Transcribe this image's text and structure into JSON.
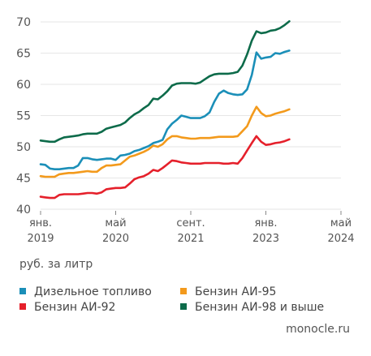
{
  "chart_data": {
    "type": "line",
    "ylim": [
      40,
      70
    ],
    "yticks": [
      40,
      45,
      50,
      55,
      60,
      65,
      70
    ],
    "xlim": [
      0,
      64
    ],
    "x_ticks": [
      {
        "x": 0,
        "month": "янв.",
        "year": "2019"
      },
      {
        "x": 16,
        "month": "май",
        "year": "2020"
      },
      {
        "x": 32,
        "month": "сент.",
        "year": "2021"
      },
      {
        "x": 48,
        "month": "янв.",
        "year": "2023"
      },
      {
        "x": 64,
        "month": "май",
        "year": "2024"
      }
    ],
    "unit": "руб. за литр",
    "grid": true,
    "series": [
      {
        "name": "Дизельное топливо",
        "color": "#1b8fb8",
        "points": [
          [
            0,
            47.2
          ],
          [
            1,
            47.1
          ],
          [
            2,
            46.5
          ],
          [
            3,
            46.4
          ],
          [
            4,
            46.4
          ],
          [
            5,
            46.5
          ],
          [
            6,
            46.6
          ],
          [
            7,
            46.6
          ],
          [
            8,
            47.0
          ],
          [
            9,
            48.2
          ],
          [
            10,
            48.2
          ],
          [
            11,
            48.0
          ],
          [
            12,
            47.9
          ],
          [
            13,
            48.0
          ],
          [
            14,
            48.1
          ],
          [
            15,
            48.1
          ],
          [
            16,
            47.9
          ],
          [
            17,
            48.6
          ],
          [
            18,
            48.7
          ],
          [
            19,
            48.9
          ],
          [
            20,
            49.3
          ],
          [
            21,
            49.5
          ],
          [
            22,
            49.8
          ],
          [
            23,
            50.1
          ],
          [
            24,
            50.6
          ],
          [
            25,
            50.8
          ],
          [
            26,
            51.1
          ],
          [
            27,
            52.8
          ],
          [
            28,
            53.7
          ],
          [
            29,
            54.3
          ],
          [
            30,
            55.0
          ],
          [
            31,
            54.8
          ],
          [
            32,
            54.6
          ],
          [
            33,
            54.6
          ],
          [
            34,
            54.6
          ],
          [
            35,
            54.9
          ],
          [
            36,
            55.5
          ],
          [
            37,
            57.2
          ],
          [
            38,
            58.5
          ],
          [
            39,
            59.0
          ],
          [
            40,
            58.6
          ],
          [
            41,
            58.4
          ],
          [
            42,
            58.3
          ],
          [
            43,
            58.4
          ],
          [
            44,
            59.2
          ],
          [
            45,
            61.5
          ],
          [
            46,
            65.1
          ],
          [
            47,
            64.1
          ],
          [
            48,
            64.3
          ],
          [
            49,
            64.4
          ],
          [
            50,
            65.0
          ],
          [
            51,
            64.9
          ],
          [
            52,
            65.2
          ],
          [
            53,
            65.4
          ]
        ]
      },
      {
        "name": "Бензин АИ-95",
        "color": "#f39a1c",
        "points": [
          [
            0,
            45.3
          ],
          [
            1,
            45.2
          ],
          [
            2,
            45.2
          ],
          [
            3,
            45.2
          ],
          [
            4,
            45.6
          ],
          [
            5,
            45.7
          ],
          [
            6,
            45.8
          ],
          [
            7,
            45.8
          ],
          [
            8,
            45.9
          ],
          [
            9,
            46.0
          ],
          [
            10,
            46.1
          ],
          [
            11,
            46.0
          ],
          [
            12,
            46.0
          ],
          [
            13,
            46.6
          ],
          [
            14,
            47.0
          ],
          [
            15,
            47.0
          ],
          [
            16,
            47.1
          ],
          [
            17,
            47.2
          ],
          [
            18,
            47.8
          ],
          [
            19,
            48.4
          ],
          [
            20,
            48.6
          ],
          [
            21,
            48.9
          ],
          [
            22,
            49.2
          ],
          [
            23,
            49.6
          ],
          [
            24,
            50.2
          ],
          [
            25,
            50.0
          ],
          [
            26,
            50.4
          ],
          [
            27,
            51.2
          ],
          [
            28,
            51.7
          ],
          [
            29,
            51.7
          ],
          [
            30,
            51.5
          ],
          [
            31,
            51.4
          ],
          [
            32,
            51.3
          ],
          [
            33,
            51.3
          ],
          [
            34,
            51.4
          ],
          [
            35,
            51.4
          ],
          [
            36,
            51.4
          ],
          [
            37,
            51.5
          ],
          [
            38,
            51.6
          ],
          [
            39,
            51.6
          ],
          [
            40,
            51.6
          ],
          [
            41,
            51.6
          ],
          [
            42,
            51.7
          ],
          [
            43,
            52.5
          ],
          [
            44,
            53.3
          ],
          [
            45,
            55.0
          ],
          [
            46,
            56.4
          ],
          [
            47,
            55.4
          ],
          [
            48,
            54.9
          ],
          [
            49,
            55.0
          ],
          [
            50,
            55.3
          ],
          [
            51,
            55.5
          ],
          [
            52,
            55.7
          ],
          [
            53,
            56.0
          ]
        ]
      },
      {
        "name": "Бензин АИ-92",
        "color": "#e5202b",
        "points": [
          [
            0,
            42.0
          ],
          [
            1,
            41.9
          ],
          [
            2,
            41.8
          ],
          [
            3,
            41.8
          ],
          [
            4,
            42.3
          ],
          [
            5,
            42.4
          ],
          [
            6,
            42.4
          ],
          [
            7,
            42.4
          ],
          [
            8,
            42.4
          ],
          [
            9,
            42.5
          ],
          [
            10,
            42.6
          ],
          [
            11,
            42.6
          ],
          [
            12,
            42.5
          ],
          [
            13,
            42.7
          ],
          [
            14,
            43.2
          ],
          [
            15,
            43.3
          ],
          [
            16,
            43.4
          ],
          [
            17,
            43.4
          ],
          [
            18,
            43.5
          ],
          [
            19,
            44.1
          ],
          [
            20,
            44.8
          ],
          [
            21,
            45.1
          ],
          [
            22,
            45.3
          ],
          [
            23,
            45.7
          ],
          [
            24,
            46.3
          ],
          [
            25,
            46.1
          ],
          [
            26,
            46.6
          ],
          [
            27,
            47.2
          ],
          [
            28,
            47.8
          ],
          [
            29,
            47.7
          ],
          [
            30,
            47.5
          ],
          [
            31,
            47.4
          ],
          [
            32,
            47.3
          ],
          [
            33,
            47.3
          ],
          [
            34,
            47.3
          ],
          [
            35,
            47.4
          ],
          [
            36,
            47.4
          ],
          [
            37,
            47.4
          ],
          [
            38,
            47.4
          ],
          [
            39,
            47.3
          ],
          [
            40,
            47.3
          ],
          [
            41,
            47.4
          ],
          [
            42,
            47.3
          ],
          [
            43,
            48.2
          ],
          [
            44,
            49.4
          ],
          [
            45,
            50.6
          ],
          [
            46,
            51.7
          ],
          [
            47,
            50.8
          ],
          [
            48,
            50.3
          ],
          [
            49,
            50.4
          ],
          [
            50,
            50.6
          ],
          [
            51,
            50.7
          ],
          [
            52,
            50.9
          ],
          [
            53,
            51.2
          ]
        ]
      },
      {
        "name": "Бензин АИ-98 и выше",
        "color": "#0d6b4a",
        "points": [
          [
            0,
            51.0
          ],
          [
            1,
            50.9
          ],
          [
            2,
            50.8
          ],
          [
            3,
            50.8
          ],
          [
            4,
            51.2
          ],
          [
            5,
            51.5
          ],
          [
            6,
            51.6
          ],
          [
            7,
            51.7
          ],
          [
            8,
            51.8
          ],
          [
            9,
            52.0
          ],
          [
            10,
            52.1
          ],
          [
            11,
            52.1
          ],
          [
            12,
            52.1
          ],
          [
            13,
            52.4
          ],
          [
            14,
            52.9
          ],
          [
            15,
            53.1
          ],
          [
            16,
            53.3
          ],
          [
            17,
            53.5
          ],
          [
            18,
            53.9
          ],
          [
            19,
            54.6
          ],
          [
            20,
            55.2
          ],
          [
            21,
            55.6
          ],
          [
            22,
            56.2
          ],
          [
            23,
            56.7
          ],
          [
            24,
            57.7
          ],
          [
            25,
            57.6
          ],
          [
            26,
            58.2
          ],
          [
            27,
            58.9
          ],
          [
            28,
            59.8
          ],
          [
            29,
            60.1
          ],
          [
            30,
            60.2
          ],
          [
            31,
            60.2
          ],
          [
            32,
            60.2
          ],
          [
            33,
            60.1
          ],
          [
            34,
            60.3
          ],
          [
            35,
            60.8
          ],
          [
            36,
            61.3
          ],
          [
            37,
            61.6
          ],
          [
            38,
            61.7
          ],
          [
            39,
            61.7
          ],
          [
            40,
            61.7
          ],
          [
            41,
            61.8
          ],
          [
            42,
            62.0
          ],
          [
            43,
            63.0
          ],
          [
            44,
            64.8
          ],
          [
            45,
            67.0
          ],
          [
            46,
            68.5
          ],
          [
            47,
            68.2
          ],
          [
            48,
            68.3
          ],
          [
            49,
            68.6
          ],
          [
            50,
            68.7
          ],
          [
            51,
            69.0
          ],
          [
            52,
            69.5
          ],
          [
            53,
            70.1
          ]
        ]
      }
    ]
  },
  "legend": [
    {
      "label": "Дизельное топливо",
      "color": "#1b8fb8"
    },
    {
      "label": "Бензин АИ-95",
      "color": "#f39a1c"
    },
    {
      "label": "Бензин АИ-92",
      "color": "#e5202b"
    },
    {
      "label": "Бензин АИ-98 и выше",
      "color": "#0d6b4a"
    }
  ],
  "unit_label": "руб. за литр",
  "source": "monocle.ru"
}
